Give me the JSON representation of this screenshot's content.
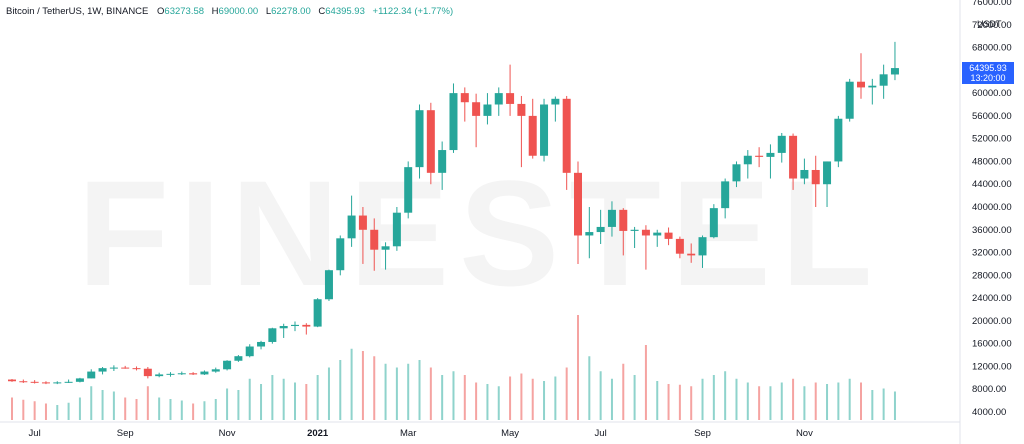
{
  "header": {
    "symbol": "Bitcoin / TetherUS, 1W, BINANCE",
    "open_key": "O",
    "open": "63273.58",
    "high_key": "H",
    "high": "69000.00",
    "low_key": "L",
    "low": "62278.00",
    "close_key": "C",
    "close": "64395.93",
    "change": "+1122.34 (+1.77%)"
  },
  "watermark": "FINESTEL",
  "price_axis": {
    "unit": "USDT",
    "labels": [
      "76000.00",
      "72000.00",
      "68000.00",
      "64000.00",
      "60000.00",
      "56000.00",
      "52000.00",
      "48000.00",
      "44000.00",
      "40000.00",
      "36000.00",
      "32000.00",
      "28000.00",
      "24000.00",
      "20000.00",
      "16000.00",
      "12000.00",
      "8000.00",
      "4000.00"
    ],
    "current_price": "64395.93",
    "countdown": "13:20:00"
  },
  "colors": {
    "up": "#26a69a",
    "down": "#ef5350",
    "badge": "#2962ff",
    "up_vol": "#8fd3cc",
    "down_vol": "#f5a3a1"
  },
  "chart_data": {
    "type": "candlestick",
    "title": "Bitcoin / TetherUS, 1W, BINANCE",
    "ylim": [
      4000,
      76000
    ],
    "x_labels": [
      {
        "label": "Jul",
        "i": 2
      },
      {
        "label": "Sep",
        "i": 10
      },
      {
        "label": "Nov",
        "i": 19
      },
      {
        "label": "2021",
        "i": 27
      },
      {
        "label": "Mar",
        "i": 35
      },
      {
        "label": "May",
        "i": 44
      },
      {
        "label": "Jul",
        "i": 52
      },
      {
        "label": "Sep",
        "i": 61
      },
      {
        "label": "Nov",
        "i": 70
      }
    ],
    "candles": [
      {
        "o": 9700,
        "h": 9800,
        "l": 9300,
        "c": 9400,
        "v": 30
      },
      {
        "o": 9400,
        "h": 9700,
        "l": 9100,
        "c": 9300,
        "v": 27
      },
      {
        "o": 9300,
        "h": 9600,
        "l": 9000,
        "c": 9200,
        "v": 25
      },
      {
        "o": 9200,
        "h": 9400,
        "l": 8900,
        "c": 9100,
        "v": 22
      },
      {
        "o": 9100,
        "h": 9400,
        "l": 8900,
        "c": 9200,
        "v": 20
      },
      {
        "o": 9200,
        "h": 9700,
        "l": 9100,
        "c": 9300,
        "v": 23
      },
      {
        "o": 9300,
        "h": 10000,
        "l": 9200,
        "c": 9900,
        "v": 30
      },
      {
        "o": 9900,
        "h": 11500,
        "l": 9900,
        "c": 11100,
        "v": 45
      },
      {
        "o": 11100,
        "h": 11900,
        "l": 10600,
        "c": 11700,
        "v": 40
      },
      {
        "o": 11700,
        "h": 12200,
        "l": 11200,
        "c": 11800,
        "v": 38
      },
      {
        "o": 11800,
        "h": 12100,
        "l": 11600,
        "c": 11700,
        "v": 30
      },
      {
        "o": 11700,
        "h": 12000,
        "l": 11300,
        "c": 11600,
        "v": 28
      },
      {
        "o": 11600,
        "h": 11900,
        "l": 9900,
        "c": 10300,
        "v": 45
      },
      {
        "o": 10300,
        "h": 10900,
        "l": 10100,
        "c": 10600,
        "v": 30
      },
      {
        "o": 10600,
        "h": 11000,
        "l": 10200,
        "c": 10700,
        "v": 28
      },
      {
        "o": 10700,
        "h": 11100,
        "l": 10500,
        "c": 10800,
        "v": 26
      },
      {
        "o": 10800,
        "h": 11000,
        "l": 10500,
        "c": 10600,
        "v": 22
      },
      {
        "o": 10600,
        "h": 11300,
        "l": 10500,
        "c": 11100,
        "v": 25
      },
      {
        "o": 11100,
        "h": 11800,
        "l": 10900,
        "c": 11500,
        "v": 28
      },
      {
        "o": 11500,
        "h": 13100,
        "l": 11300,
        "c": 13000,
        "v": 42
      },
      {
        "o": 13000,
        "h": 14000,
        "l": 12800,
        "c": 13800,
        "v": 40
      },
      {
        "o": 13800,
        "h": 15900,
        "l": 13600,
        "c": 15500,
        "v": 55
      },
      {
        "o": 15500,
        "h": 16500,
        "l": 15000,
        "c": 16300,
        "v": 48
      },
      {
        "o": 16300,
        "h": 18800,
        "l": 16000,
        "c": 18700,
        "v": 60
      },
      {
        "o": 18700,
        "h": 19500,
        "l": 17000,
        "c": 19100,
        "v": 55
      },
      {
        "o": 19100,
        "h": 19900,
        "l": 18200,
        "c": 19300,
        "v": 50
      },
      {
        "o": 19300,
        "h": 19600,
        "l": 17600,
        "c": 19000,
        "v": 48
      },
      {
        "o": 19000,
        "h": 24000,
        "l": 18900,
        "c": 23800,
        "v": 60
      },
      {
        "o": 23800,
        "h": 29000,
        "l": 23500,
        "c": 28900,
        "v": 70
      },
      {
        "o": 28900,
        "h": 35000,
        "l": 28000,
        "c": 34500,
        "v": 80
      },
      {
        "o": 34500,
        "h": 42000,
        "l": 33000,
        "c": 38500,
        "v": 95
      },
      {
        "o": 38500,
        "h": 40000,
        "l": 30000,
        "c": 36000,
        "v": 92
      },
      {
        "o": 36000,
        "h": 38000,
        "l": 28800,
        "c": 32500,
        "v": 85
      },
      {
        "o": 32500,
        "h": 33800,
        "l": 29000,
        "c": 33100,
        "v": 75
      },
      {
        "o": 33100,
        "h": 40000,
        "l": 32300,
        "c": 39000,
        "v": 70
      },
      {
        "o": 39000,
        "h": 48000,
        "l": 38000,
        "c": 47000,
        "v": 75
      },
      {
        "o": 47000,
        "h": 58000,
        "l": 45000,
        "c": 57000,
        "v": 80
      },
      {
        "o": 57000,
        "h": 58300,
        "l": 44000,
        "c": 46000,
        "v": 70
      },
      {
        "o": 46000,
        "h": 51500,
        "l": 43000,
        "c": 50000,
        "v": 60
      },
      {
        "o": 50000,
        "h": 61700,
        "l": 49500,
        "c": 60000,
        "v": 65
      },
      {
        "o": 60000,
        "h": 61000,
        "l": 55000,
        "c": 58400,
        "v": 60
      },
      {
        "o": 58400,
        "h": 59900,
        "l": 50500,
        "c": 56000,
        "v": 50
      },
      {
        "o": 56000,
        "h": 60000,
        "l": 54500,
        "c": 58000,
        "v": 48
      },
      {
        "o": 58000,
        "h": 61000,
        "l": 56000,
        "c": 60000,
        "v": 45
      },
      {
        "o": 60000,
        "h": 65000,
        "l": 56000,
        "c": 58100,
        "v": 58
      },
      {
        "o": 58100,
        "h": 59500,
        "l": 47000,
        "c": 56000,
        "v": 62
      },
      {
        "o": 56000,
        "h": 59000,
        "l": 48500,
        "c": 49000,
        "v": 55
      },
      {
        "o": 49000,
        "h": 59000,
        "l": 48000,
        "c": 58000,
        "v": 52
      },
      {
        "o": 58000,
        "h": 59400,
        "l": 55000,
        "c": 59000,
        "v": 58
      },
      {
        "o": 59000,
        "h": 59500,
        "l": 43000,
        "c": 46000,
        "v": 70
      },
      {
        "o": 46000,
        "h": 48000,
        "l": 30000,
        "c": 35000,
        "v": 140
      },
      {
        "o": 35000,
        "h": 40000,
        "l": 31000,
        "c": 35600,
        "v": 85
      },
      {
        "o": 35600,
        "h": 39500,
        "l": 33500,
        "c": 36500,
        "v": 65
      },
      {
        "o": 36500,
        "h": 41000,
        "l": 34800,
        "c": 39500,
        "v": 55
      },
      {
        "o": 39500,
        "h": 39800,
        "l": 31500,
        "c": 35800,
        "v": 75
      },
      {
        "o": 35800,
        "h": 36500,
        "l": 32800,
        "c": 36000,
        "v": 60
      },
      {
        "o": 36000,
        "h": 36800,
        "l": 29000,
        "c": 35000,
        "v": 100
      },
      {
        "o": 35000,
        "h": 36000,
        "l": 33000,
        "c": 35500,
        "v": 52
      },
      {
        "o": 35500,
        "h": 36400,
        "l": 33300,
        "c": 34400,
        "v": 48
      },
      {
        "o": 34400,
        "h": 34800,
        "l": 31000,
        "c": 31800,
        "v": 47
      },
      {
        "o": 31800,
        "h": 33600,
        "l": 30200,
        "c": 31500,
        "v": 45
      },
      {
        "o": 31500,
        "h": 35000,
        "l": 29300,
        "c": 34700,
        "v": 55
      },
      {
        "o": 34700,
        "h": 40500,
        "l": 34500,
        "c": 39800,
        "v": 60
      },
      {
        "o": 39800,
        "h": 45000,
        "l": 38000,
        "c": 44500,
        "v": 65
      },
      {
        "o": 44500,
        "h": 48000,
        "l": 43500,
        "c": 47500,
        "v": 55
      },
      {
        "o": 47500,
        "h": 50000,
        "l": 45000,
        "c": 49000,
        "v": 50
      },
      {
        "o": 49000,
        "h": 50500,
        "l": 47000,
        "c": 48800,
        "v": 45
      },
      {
        "o": 48800,
        "h": 51000,
        "l": 45000,
        "c": 49500,
        "v": 45
      },
      {
        "o": 49500,
        "h": 53000,
        "l": 47800,
        "c": 52500,
        "v": 50
      },
      {
        "o": 52500,
        "h": 52900,
        "l": 43000,
        "c": 45000,
        "v": 55
      },
      {
        "o": 45000,
        "h": 48500,
        "l": 44000,
        "c": 46500,
        "v": 45
      },
      {
        "o": 46500,
        "h": 49000,
        "l": 40000,
        "c": 44000,
        "v": 50
      },
      {
        "o": 44000,
        "h": 48000,
        "l": 40000,
        "c": 48000,
        "v": 48
      },
      {
        "o": 48000,
        "h": 56000,
        "l": 47000,
        "c": 55500,
        "v": 50
      },
      {
        "o": 55500,
        "h": 62500,
        "l": 55000,
        "c": 62000,
        "v": 55
      },
      {
        "o": 62000,
        "h": 67000,
        "l": 59000,
        "c": 61000,
        "v": 50
      },
      {
        "o": 61000,
        "h": 62500,
        "l": 58000,
        "c": 61300,
        "v": 40
      },
      {
        "o": 61300,
        "h": 65000,
        "l": 59000,
        "c": 63300,
        "v": 42
      },
      {
        "o": 63273.58,
        "h": 69000,
        "l": 62278,
        "c": 64395.93,
        "v": 38
      }
    ]
  }
}
